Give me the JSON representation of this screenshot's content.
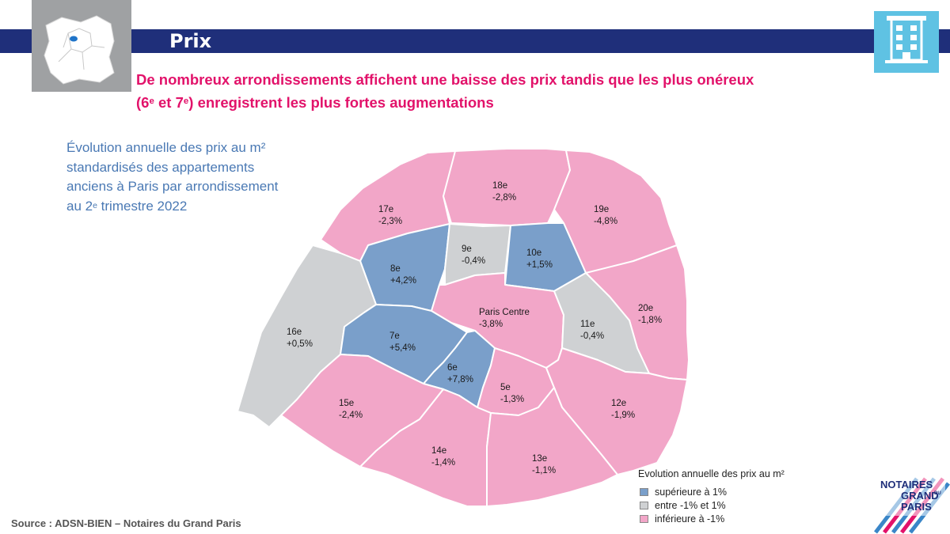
{
  "header": {
    "section_title": "Prix",
    "headline_line1": "De nombreux arrondissements affichent une baisse des prix tandis que les plus onéreux",
    "headline_line2_pre": "(6",
    "headline_line2_sup1": "e",
    "headline_line2_mid": " et 7",
    "headline_line2_sup2": "e",
    "headline_line2_post": ") enregistrent les plus fortes augmentations"
  },
  "subtitle": {
    "line1": "Évolution annuelle des prix au m²",
    "line2": "standardisés des appartements",
    "line3": "anciens à Paris par arrondissement",
    "line4_pre": "au 2",
    "line4_sup": "e",
    "line4_post": " trimestre 2022"
  },
  "map": {
    "districts": [
      {
        "name": "17e",
        "value": "-2,3%",
        "class": "inferieure"
      },
      {
        "name": "18e",
        "value": "-2,8%",
        "class": "inferieure"
      },
      {
        "name": "19e",
        "value": "-4,8%",
        "class": "inferieure"
      },
      {
        "name": "8e",
        "value": "+4,2%",
        "class": "superieure"
      },
      {
        "name": "9e",
        "value": "-0,4%",
        "class": "entre"
      },
      {
        "name": "10e",
        "value": "+1,5%",
        "class": "superieure"
      },
      {
        "name": "16e",
        "value": "+0,5%",
        "class": "entre"
      },
      {
        "name": "Paris Centre",
        "value": "-3,8%",
        "class": "inferieure"
      },
      {
        "name": "20e",
        "value": "-1,8%",
        "class": "inferieure"
      },
      {
        "name": "7e",
        "value": "+5,4%",
        "class": "superieure"
      },
      {
        "name": "11e",
        "value": "-0,4%",
        "class": "entre"
      },
      {
        "name": "6e",
        "value": "+7,8%",
        "class": "superieure"
      },
      {
        "name": "5e",
        "value": "-1,3%",
        "class": "inferieure"
      },
      {
        "name": "15e",
        "value": "-2,4%",
        "class": "inferieure"
      },
      {
        "name": "12e",
        "value": "-1,9%",
        "class": "inferieure"
      },
      {
        "name": "14e",
        "value": "-1,4%",
        "class": "inferieure"
      },
      {
        "name": "13e",
        "value": "-1,1%",
        "class": "inferieure"
      }
    ]
  },
  "legend": {
    "title": "Evolution annuelle des prix au m²",
    "items": [
      {
        "label": "supérieure à 1%",
        "color": "#7a9fca"
      },
      {
        "label": "entre -1% et 1%",
        "color": "#cfd1d3"
      },
      {
        "label": "inférieure à -1%",
        "color": "#f2a6c8"
      }
    ]
  },
  "source": "Source : ADSN-BIEN – Notaires du Grand Paris",
  "logo": {
    "line1": "NOTAIRES",
    "line2": "GRAND",
    "line3": "PARIS",
    "small": "DU"
  },
  "colors": {
    "band": "#1f2f7a",
    "headline": "#e2126a",
    "subtitle": "#4a79b4",
    "superieure": "#7a9fca",
    "entre": "#cfd1d3",
    "inferieure": "#f2a6c8",
    "accent_icon": "#5fc2e3"
  }
}
